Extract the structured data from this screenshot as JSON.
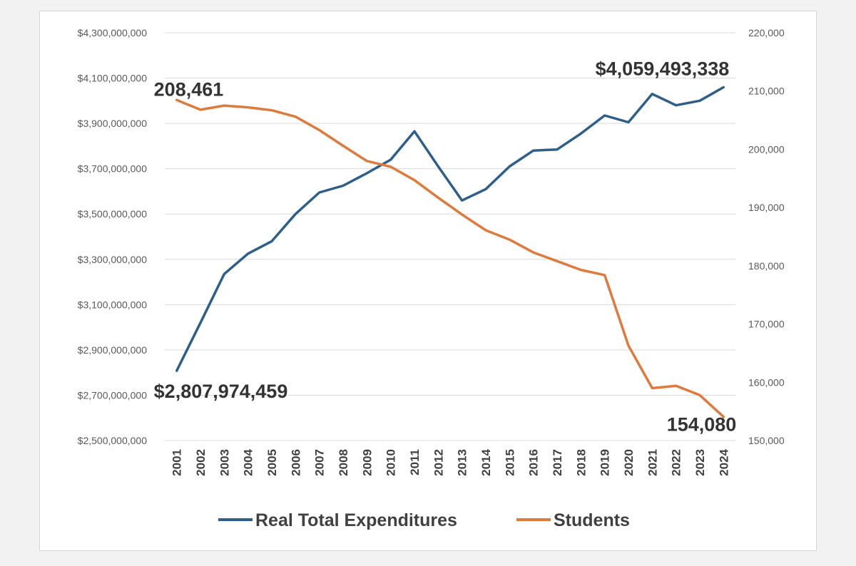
{
  "chart_data": {
    "type": "line",
    "title": "",
    "x": [
      2001,
      2002,
      2003,
      2004,
      2005,
      2006,
      2007,
      2008,
      2009,
      2010,
      2011,
      2012,
      2013,
      2014,
      2015,
      2016,
      2017,
      2018,
      2019,
      2020,
      2021,
      2022,
      2023,
      2024
    ],
    "series": [
      {
        "name": "Real Total Expenditures",
        "axis": "left",
        "color": "#2e5f8a",
        "values": [
          2807974459,
          3020000000,
          3235000000,
          3325000000,
          3380000000,
          3500000000,
          3595000000,
          3625000000,
          3680000000,
          3740000000,
          3865000000,
          3710000000,
          3560000000,
          3610000000,
          3710000000,
          3780000000,
          3785000000,
          3855000000,
          3935000000,
          3905000000,
          4030000000,
          3980000000,
          4000000000,
          4059493338
        ]
      },
      {
        "name": "Students",
        "axis": "right",
        "color": "#e07a3c",
        "values": [
          208461,
          206800,
          207500,
          207200,
          206700,
          205600,
          203300,
          200600,
          198000,
          197000,
          194700,
          191700,
          188800,
          186100,
          184500,
          182300,
          180800,
          179300,
          178400,
          166300,
          159000,
          159400,
          157800,
          154080
        ]
      }
    ],
    "y_left": {
      "min": 2500000000,
      "max": 4300000000,
      "step": 200000000,
      "ticks": [
        "$2,500,000,000",
        "$2,700,000,000",
        "$2,900,000,000",
        "$3,100,000,000",
        "$3,300,000,000",
        "$3,500,000,000",
        "$3,700,000,000",
        "$3,900,000,000",
        "$4,100,000,000",
        "$4,300,000,000"
      ]
    },
    "y_right": {
      "min": 150000,
      "max": 220000,
      "step": 10000,
      "ticks": [
        "150,000",
        "160,000",
        "170,000",
        "180,000",
        "190,000",
        "200,000",
        "210,000",
        "220,000"
      ]
    },
    "annotations": [
      {
        "text": "$2,807,974,459",
        "series": 0,
        "index": 0
      },
      {
        "text": "$4,059,493,338",
        "series": 0,
        "index": 23
      },
      {
        "text": "208,461",
        "series": 1,
        "index": 0
      },
      {
        "text": "154,080",
        "series": 1,
        "index": 23
      }
    ],
    "grid": true,
    "legend": "bottom"
  }
}
